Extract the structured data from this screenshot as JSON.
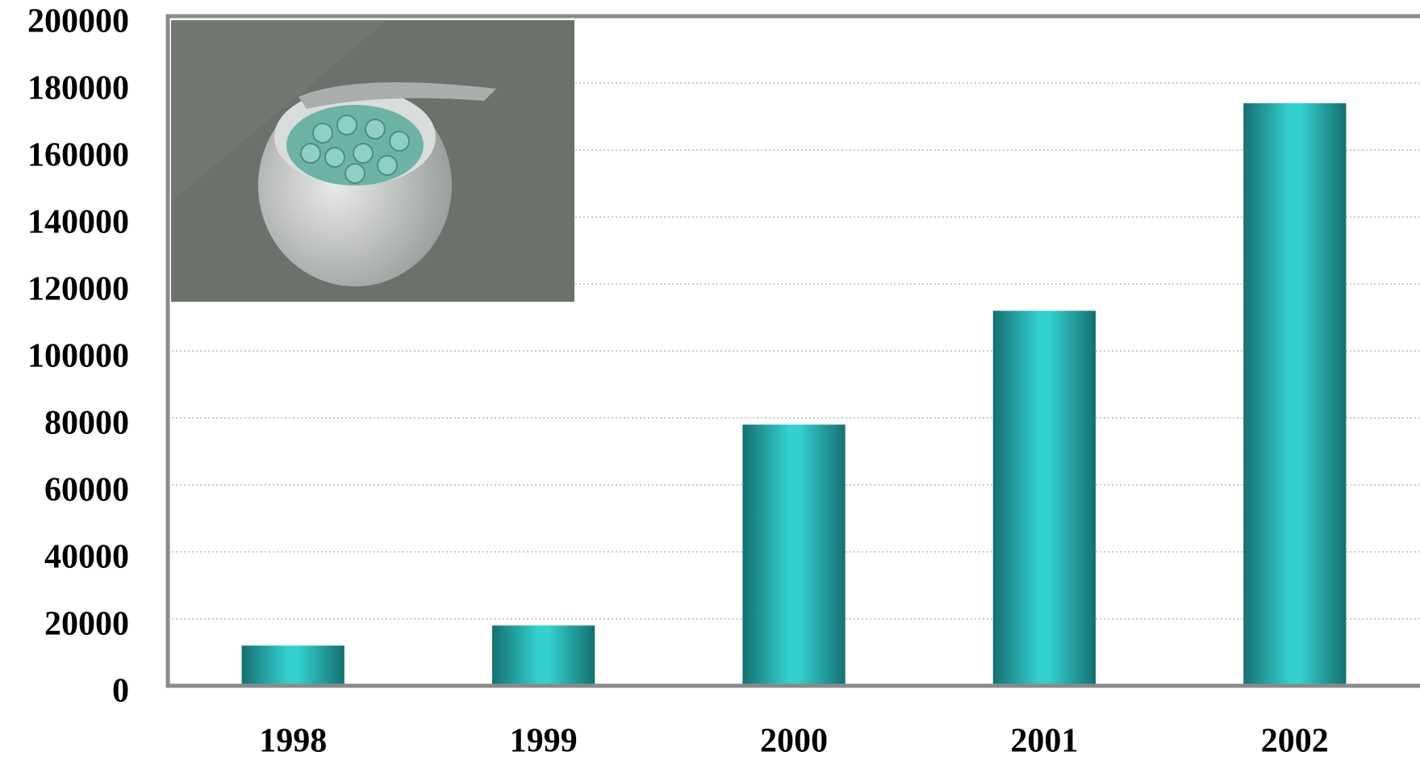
{
  "chart_data": {
    "type": "bar",
    "categories": [
      "1998",
      "1999",
      "2000",
      "2001",
      "2002"
    ],
    "values": [
      12000,
      18000,
      78000,
      112000,
      174000
    ],
    "color": "#33d0d0",
    "ylim": [
      0,
      200000
    ],
    "yticks": [
      0,
      20000,
      40000,
      60000,
      80000,
      100000,
      120000,
      140000,
      160000,
      180000,
      200000
    ],
    "grid": true
  }
}
